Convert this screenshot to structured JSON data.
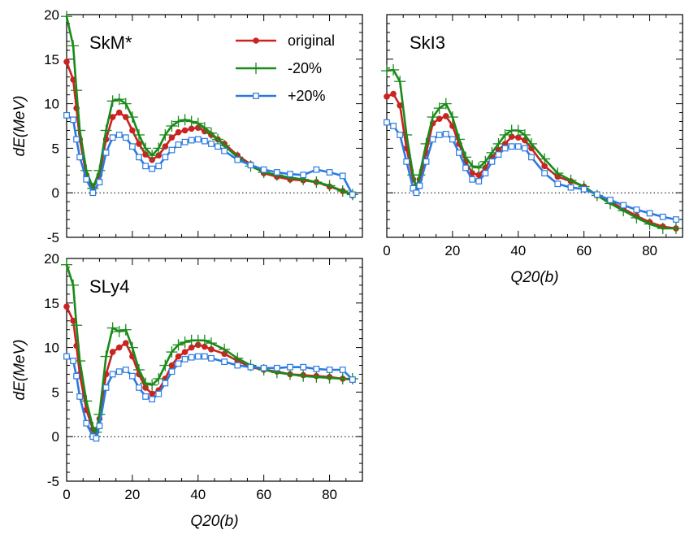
{
  "chart_data": [
    {
      "type": "line",
      "panel": "top-left",
      "title": "SkM*",
      "xlabel": "",
      "ylabel": "dE(MeV)",
      "xlim": [
        0,
        90
      ],
      "ylim": [
        -5,
        20
      ],
      "xticks": [
        0,
        20,
        40,
        60,
        80
      ],
      "yticks": [
        -5,
        0,
        5,
        10,
        15,
        20
      ],
      "show_x_tick_labels": false,
      "show_y_tick_labels": true,
      "zero_line": true,
      "legend": "top-center",
      "series": [
        {
          "name": "original",
          "color": "#cc2222",
          "marker": "circle",
          "x": [
            0,
            2,
            3,
            4,
            6,
            8,
            10,
            12,
            14,
            16,
            18,
            20,
            22,
            24,
            26,
            28,
            30,
            32,
            34,
            36,
            38,
            40,
            42,
            44,
            46,
            48,
            52,
            56,
            60,
            64,
            68,
            72,
            76,
            80,
            84,
            87
          ],
          "y": [
            14.7,
            12.7,
            9.5,
            6.0,
            2.0,
            0.5,
            2.0,
            6.0,
            8.5,
            9.0,
            8.5,
            7.0,
            5.5,
            4.3,
            3.7,
            4.2,
            5.2,
            6.2,
            6.8,
            7.0,
            7.2,
            7.3,
            6.9,
            6.5,
            6.0,
            5.5,
            4.2,
            3.2,
            2.2,
            1.8,
            1.5,
            1.4,
            1.2,
            0.7,
            0.2,
            -0.3
          ]
        },
        {
          "name": "-20%",
          "color": "#1a8a1a",
          "marker": "plus",
          "x": [
            0,
            2,
            3,
            4,
            6,
            8,
            10,
            12,
            14,
            16,
            18,
            20,
            22,
            24,
            26,
            28,
            30,
            32,
            34,
            36,
            38,
            40,
            42,
            44,
            46,
            48,
            52,
            56,
            60,
            64,
            68,
            72,
            76,
            80,
            84,
            87
          ],
          "y": [
            19.8,
            16.5,
            11.5,
            7.0,
            2.5,
            0.5,
            2.5,
            7.0,
            10.3,
            10.5,
            10.0,
            8.5,
            6.5,
            5.0,
            4.2,
            5.0,
            6.5,
            7.5,
            8.0,
            8.2,
            8.0,
            7.8,
            7.3,
            6.7,
            6.0,
            5.3,
            4.0,
            3.0,
            2.3,
            2.0,
            1.7,
            1.5,
            1.2,
            0.8,
            0.2,
            -0.2
          ]
        },
        {
          "name": "+20%",
          "color": "#2a7ae2",
          "marker": "square",
          "x": [
            0,
            2,
            3,
            4,
            6,
            8,
            10,
            12,
            14,
            16,
            18,
            20,
            22,
            24,
            26,
            28,
            30,
            32,
            34,
            36,
            38,
            40,
            42,
            44,
            46,
            48,
            52,
            56,
            60,
            64,
            68,
            72,
            76,
            80,
            84,
            87
          ],
          "y": [
            8.7,
            8.2,
            6.0,
            4.0,
            1.5,
            0.0,
            1.2,
            4.5,
            6.2,
            6.5,
            6.2,
            5.2,
            4.0,
            3.0,
            2.7,
            3.0,
            4.0,
            4.8,
            5.4,
            5.7,
            5.9,
            6.0,
            5.8,
            5.5,
            5.2,
            4.7,
            3.7,
            3.1,
            2.6,
            2.3,
            2.1,
            2.0,
            2.6,
            2.3,
            1.9,
            -0.2
          ]
        }
      ]
    },
    {
      "type": "line",
      "panel": "top-right",
      "title": "SkI3",
      "xlabel": "Q20(b)",
      "ylabel": "",
      "xlim": [
        0,
        90
      ],
      "ylim": [
        -5,
        20
      ],
      "xticks": [
        0,
        20,
        40,
        60,
        80
      ],
      "yticks": [
        -5,
        0,
        5,
        10,
        15,
        20
      ],
      "show_x_tick_labels": true,
      "show_y_tick_labels": false,
      "zero_line": true,
      "series": [
        {
          "name": "original",
          "color": "#cc2222",
          "marker": "circle",
          "x": [
            0,
            2,
            4,
            6,
            8,
            9,
            10,
            12,
            14,
            16,
            18,
            20,
            22,
            24,
            26,
            28,
            30,
            32,
            34,
            36,
            38,
            40,
            42,
            44,
            48,
            52,
            56,
            60,
            64,
            68,
            72,
            76,
            80,
            84,
            88
          ],
          "y": [
            10.8,
            11.1,
            9.8,
            5.0,
            1.5,
            0.8,
            1.5,
            4.5,
            7.8,
            8.3,
            8.6,
            7.5,
            5.5,
            3.5,
            2.2,
            2.0,
            2.8,
            4.0,
            4.8,
            5.5,
            6.3,
            6.2,
            5.9,
            5.0,
            3.0,
            1.8,
            1.3,
            0.7,
            -0.3,
            -1.0,
            -1.8,
            -2.6,
            -3.3,
            -3.8,
            -4.0
          ]
        },
        {
          "name": "-20%",
          "color": "#1a8a1a",
          "marker": "plus",
          "x": [
            0,
            2,
            4,
            6,
            8,
            9,
            10,
            12,
            14,
            16,
            18,
            20,
            22,
            24,
            26,
            28,
            30,
            32,
            34,
            36,
            38,
            40,
            42,
            44,
            48,
            52,
            56,
            60,
            64,
            68,
            72,
            76,
            80,
            84,
            88
          ],
          "y": [
            13.7,
            13.8,
            12.5,
            6.5,
            2.0,
            0.5,
            2.0,
            5.5,
            8.5,
            9.5,
            10.0,
            8.5,
            6.0,
            4.0,
            3.0,
            2.8,
            3.5,
            4.5,
            5.5,
            6.5,
            7.0,
            7.0,
            6.5,
            5.5,
            3.8,
            2.2,
            1.4,
            0.7,
            -0.3,
            -1.2,
            -2.0,
            -2.8,
            -3.5,
            -4.0,
            -4.0
          ]
        },
        {
          "name": "+20%",
          "color": "#2a7ae2",
          "marker": "square",
          "x": [
            0,
            2,
            4,
            6,
            8,
            9,
            10,
            12,
            14,
            16,
            18,
            20,
            22,
            24,
            26,
            28,
            30,
            32,
            34,
            36,
            38,
            40,
            42,
            44,
            48,
            52,
            56,
            60,
            64,
            68,
            72,
            76,
            80,
            84,
            88
          ],
          "y": [
            7.9,
            7.5,
            6.5,
            3.5,
            0.5,
            0.0,
            0.8,
            3.5,
            6.0,
            6.5,
            6.6,
            6.0,
            4.5,
            2.8,
            1.5,
            1.3,
            2.2,
            3.5,
            4.3,
            5.0,
            5.2,
            5.2,
            5.0,
            4.0,
            2.2,
            1.0,
            0.6,
            0.4,
            -0.2,
            -0.8,
            -1.4,
            -1.9,
            -2.3,
            -2.7,
            -3.0
          ]
        }
      ]
    },
    {
      "type": "line",
      "panel": "bottom-left",
      "title": "SLy4",
      "xlabel": "Q20(b)",
      "ylabel": "dE(MeV)",
      "xlim": [
        0,
        90
      ],
      "ylim": [
        -5,
        20
      ],
      "xticks": [
        0,
        20,
        40,
        60,
        80
      ],
      "yticks": [
        -5,
        0,
        5,
        10,
        15,
        20
      ],
      "show_x_tick_labels": true,
      "show_y_tick_labels": true,
      "zero_line": true,
      "series": [
        {
          "name": "original",
          "color": "#cc2222",
          "marker": "circle",
          "x": [
            0,
            2,
            3,
            4,
            6,
            8,
            9,
            10,
            12,
            14,
            16,
            18,
            20,
            22,
            24,
            26,
            28,
            30,
            32,
            34,
            36,
            38,
            40,
            42,
            44,
            48,
            52,
            56,
            60,
            64,
            68,
            72,
            76,
            80,
            84,
            87
          ],
          "y": [
            14.6,
            13.0,
            10.2,
            7.0,
            3.0,
            0.8,
            0.5,
            2.0,
            7.0,
            9.5,
            10.0,
            10.5,
            9.0,
            7.0,
            5.5,
            4.8,
            5.2,
            6.5,
            8.0,
            9.0,
            9.5,
            10.0,
            10.3,
            10.1,
            9.8,
            9.3,
            8.5,
            7.8,
            7.5,
            7.3,
            7.0,
            6.9,
            6.8,
            6.7,
            6.5,
            6.4
          ]
        },
        {
          "name": "-20%",
          "color": "#1a8a1a",
          "marker": "plus",
          "x": [
            0,
            2,
            3,
            4,
            6,
            8,
            9,
            10,
            12,
            14,
            16,
            18,
            20,
            22,
            24,
            26,
            28,
            30,
            32,
            34,
            36,
            38,
            40,
            42,
            44,
            48,
            52,
            56,
            60,
            64,
            68,
            72,
            76,
            80,
            84,
            87
          ],
          "y": [
            19.3,
            17.0,
            12.5,
            8.5,
            4.0,
            1.0,
            0.5,
            2.5,
            9.0,
            12.2,
            11.8,
            12.0,
            10.0,
            7.5,
            6.0,
            5.8,
            6.5,
            8.0,
            9.5,
            10.3,
            10.6,
            10.8,
            10.8,
            10.8,
            10.5,
            9.8,
            8.8,
            8.0,
            7.5,
            7.2,
            7.0,
            6.8,
            6.7,
            6.6,
            6.5,
            6.5
          ]
        },
        {
          "name": "+20%",
          "color": "#2a7ae2",
          "marker": "square",
          "x": [
            0,
            2,
            3,
            4,
            6,
            8,
            9,
            10,
            12,
            14,
            16,
            18,
            20,
            22,
            24,
            26,
            28,
            30,
            32,
            34,
            36,
            38,
            40,
            42,
            44,
            48,
            52,
            56,
            60,
            64,
            68,
            72,
            76,
            80,
            84,
            87
          ],
          "y": [
            9.0,
            8.5,
            6.8,
            4.5,
            1.5,
            0.0,
            -0.2,
            1.2,
            5.5,
            7.0,
            7.3,
            7.5,
            6.8,
            5.5,
            4.5,
            4.2,
            4.8,
            6.0,
            7.3,
            8.2,
            8.7,
            8.9,
            9.0,
            9.0,
            8.8,
            8.4,
            8.0,
            7.8,
            7.7,
            7.7,
            7.8,
            7.8,
            7.6,
            7.5,
            7.5,
            6.4
          ]
        }
      ]
    }
  ]
}
